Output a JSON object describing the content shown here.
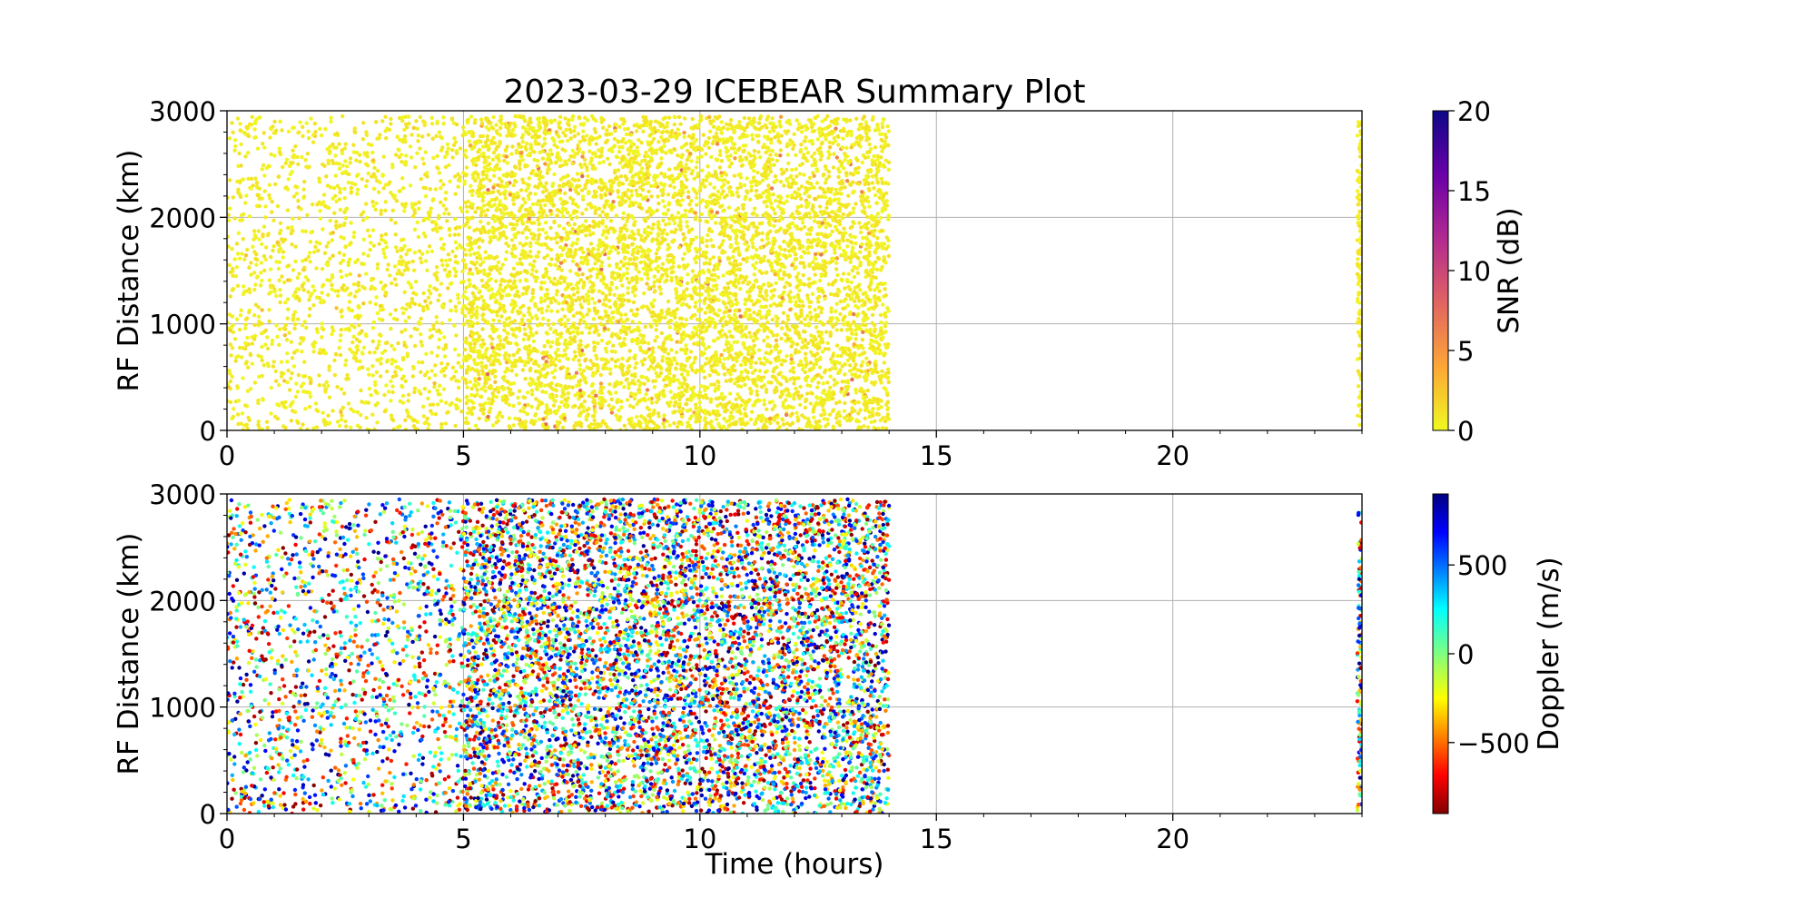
{
  "chart_data": {
    "title": "2023-03-29 ICEBEAR Summary Plot",
    "xlabel": "Time (hours)",
    "xlim": [
      0,
      24
    ],
    "xticks": [
      0,
      5,
      10,
      15,
      20
    ],
    "grid": true,
    "panels": [
      {
        "type": "scatter",
        "ylabel": "RF Distance (km)",
        "ylim": [
          0,
          3000
        ],
        "yticks": [
          0,
          1000,
          2000,
          3000
        ],
        "color_by": "snr",
        "colorbar": {
          "label": "SNR (dB)",
          "colormap": "plasma_r",
          "range": [
            0,
            20
          ],
          "ticks": [
            0,
            5,
            10,
            15,
            20
          ],
          "tick_labels": [
            "0",
            "5",
            "10",
            "15",
            "20"
          ]
        },
        "point_clusters": [
          {
            "x_range": [
              0,
              5
            ],
            "y_range": [
              0,
              2950
            ],
            "density": "sparse",
            "value_range": [
              0,
              3
            ]
          },
          {
            "x_range": [
              5,
              14
            ],
            "y_range": [
              0,
              2950
            ],
            "density": "dense",
            "value_range": [
              0,
              8
            ]
          },
          {
            "x_range": [
              23.9,
              24
            ],
            "y_range": [
              0,
              2900
            ],
            "density": "sparse",
            "value_range": [
              0,
              2
            ]
          }
        ]
      },
      {
        "type": "scatter",
        "ylabel": "RF Distance (km)",
        "ylim": [
          0,
          3000
        ],
        "yticks": [
          0,
          1000,
          2000,
          3000
        ],
        "color_by": "doppler",
        "colorbar": {
          "label": "Doppler (m/s)",
          "colormap": "jet_r",
          "range": [
            -900,
            900
          ],
          "ticks": [
            -500,
            0,
            500
          ],
          "tick_labels": [
            "−500",
            "0",
            "500"
          ]
        },
        "point_clusters": [
          {
            "x_range": [
              0,
              5
            ],
            "y_range": [
              0,
              2950
            ],
            "density": "sparse",
            "value_range": [
              -900,
              900
            ]
          },
          {
            "x_range": [
              5,
              14
            ],
            "y_range": [
              0,
              2950
            ],
            "density": "dense",
            "value_range": [
              -900,
              900
            ]
          },
          {
            "x_range": [
              23.9,
              24
            ],
            "y_range": [
              0,
              2900
            ],
            "density": "sparse",
            "value_range": [
              -900,
              900
            ]
          }
        ]
      }
    ]
  }
}
